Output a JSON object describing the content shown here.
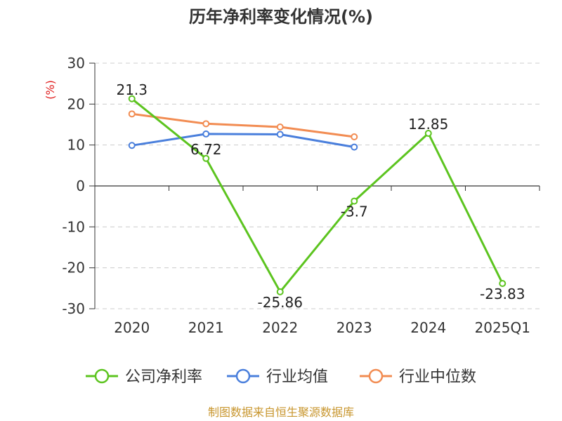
{
  "chart_data": {
    "type": "line",
    "title": "历年净利率变化情况(%)",
    "ylabel": "(%)",
    "categories": [
      "2020",
      "2021",
      "2022",
      "2023",
      "2024",
      "2025Q1"
    ],
    "yticks": [
      30,
      20,
      10,
      0,
      -10,
      -20,
      -30
    ],
    "ylim": [
      -30,
      30
    ],
    "grid": true,
    "legend_position": "bottom",
    "series": [
      {
        "name": "公司净利率",
        "color": "#5cc41f",
        "values": [
          21.3,
          6.72,
          -25.86,
          -3.7,
          12.85,
          -23.83
        ],
        "labels": [
          "21.3",
          "6.72",
          "-25.86",
          "-3.7",
          "12.85",
          "-23.83"
        ]
      },
      {
        "name": "行业均值",
        "color": "#4a7fdc",
        "values": [
          9.9,
          12.7,
          12.6,
          9.5,
          null,
          null
        ]
      },
      {
        "name": "行业中位数",
        "color": "#f28c52",
        "values": [
          17.6,
          15.2,
          14.4,
          12.0,
          null,
          null
        ]
      }
    ],
    "source": "制图数据来自恒生聚源数据库",
    "colors": {
      "axis": "#333333",
      "grid": "#cccccc",
      "ylabel": "#e02020",
      "source": "#c8962e"
    }
  }
}
